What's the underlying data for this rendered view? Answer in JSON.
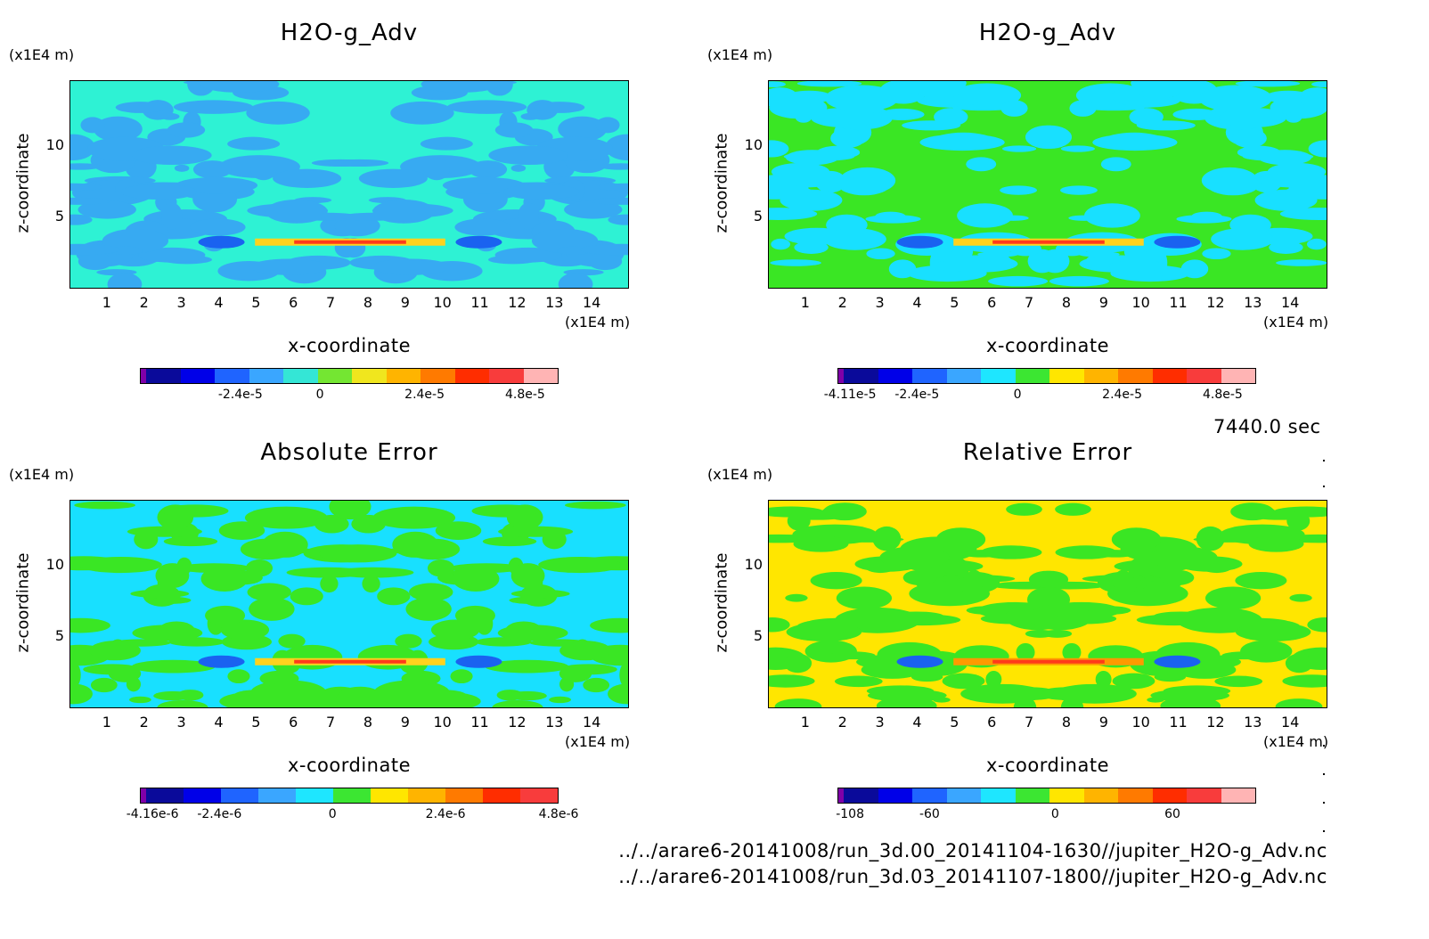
{
  "panels": [
    {
      "title": "H2O-g_Adv",
      "xlabel": "x-coordinate",
      "ylabel": "z-coordinate",
      "x_unit": "(x1E4 m)",
      "y_unit": "(x1E4 m)",
      "colorbar_ticks": [
        "-2.4e-5",
        "0",
        "2.4e-5",
        "4.8e-5"
      ],
      "colorbar_colors": [
        "#7f00a8",
        "#0a0a9a",
        "#0000e8",
        "#1f64ff",
        "#3aa6ff",
        "#34e6d6",
        "#74e632",
        "#f0e61e",
        "#ffb400",
        "#ff7a00",
        "#ff2d00",
        "#f83c3c",
        "#ffb4b4"
      ],
      "field_colors": {
        "base": "#2ef2d4",
        "mid": "#37aaf2",
        "low": "#1a62f0",
        "hot": "#ff3a1a",
        "warm": "#ffd21e"
      }
    },
    {
      "title": "H2O-g_Adv",
      "xlabel": "x-coordinate",
      "ylabel": "z-coordinate",
      "x_unit": "(x1E4 m)",
      "y_unit": "(x1E4 m)",
      "colorbar_ticks": [
        "-4.11e-5",
        "-2.4e-5",
        "0",
        "2.4e-5",
        "4.8e-5"
      ],
      "colorbar_colors": [
        "#7f00a8",
        "#0a0a9a",
        "#0000e8",
        "#1f64ff",
        "#3aa6ff",
        "#1ee6ff",
        "#3ce632",
        "#ffe600",
        "#ffb400",
        "#ff7a00",
        "#ff2d00",
        "#f83c3c",
        "#ffb4b4"
      ],
      "field_colors": {
        "base": "#3ae624",
        "mid": "#18e0ff",
        "low": "#1a62f0",
        "hot": "#ff3a1a",
        "warm": "#ffd21e"
      }
    },
    {
      "title": "Absolute Error",
      "xlabel": "x-coordinate",
      "ylabel": "z-coordinate",
      "x_unit": "(x1E4 m)",
      "y_unit": "(x1E4 m)",
      "colorbar_ticks": [
        "-4.16e-6",
        "-2.4e-6",
        "0",
        "2.4e-6",
        "4.8e-6"
      ],
      "colorbar_colors": [
        "#7f00a8",
        "#0a0a9a",
        "#0000e8",
        "#1f64ff",
        "#3aa6ff",
        "#1ee6ff",
        "#3ce632",
        "#ffe600",
        "#ffb400",
        "#ff7a00",
        "#ff2d00",
        "#f83c3c"
      ],
      "field_colors": {
        "base": "#18e0ff",
        "mid": "#3ae624",
        "low": "#1a62f0",
        "hot": "#ff3a1a",
        "warm": "#ffd21e"
      }
    },
    {
      "title": "Relative Error",
      "xlabel": "x-coordinate",
      "ylabel": "z-coordinate",
      "x_unit": "(x1E4 m)",
      "y_unit": "(x1E4 m)",
      "colorbar_ticks": [
        "-108",
        "-60",
        "0",
        "60"
      ],
      "colorbar_colors": [
        "#7f00a8",
        "#0a0a9a",
        "#0000e8",
        "#1f64ff",
        "#3aa6ff",
        "#1ee6ff",
        "#3ce632",
        "#ffe600",
        "#ffb400",
        "#ff7a00",
        "#ff2d00",
        "#f83c3c",
        "#ffb4b4"
      ],
      "field_colors": {
        "base": "#ffe600",
        "mid": "#3ae624",
        "low": "#1a62f0",
        "hot": "#ff3a1a",
        "warm": "#ff9a00"
      }
    }
  ],
  "time_label": "7440.0 sec",
  "footer_lines": [
    "../../arare6-20141008/run_3d.00_20141104-1630//jupiter_H2O-g_Adv.nc",
    "../../arare6-20141008/run_3d.03_20141107-1800//jupiter_H2O-g_Adv.nc"
  ],
  "chart_data": [
    {
      "type": "heatmap",
      "title": "H2O-g_Adv",
      "xlabel": "x-coordinate",
      "ylabel": "z-coordinate",
      "x_unit": "(x1E4 m)",
      "y_unit": "(x1E4 m)",
      "xlim": [
        0,
        15
      ],
      "ylim": [
        0,
        14.5
      ],
      "x_ticks": [
        "1",
        "2",
        "3",
        "4",
        "5",
        "6",
        "7",
        "8",
        "9",
        "10",
        "11",
        "12",
        "13",
        "14"
      ],
      "y_ticks": [
        "5",
        "10"
      ],
      "colorbar": {
        "ticks": [
          "-2.4e-5",
          "0",
          "2.4e-5",
          "4.8e-5"
        ],
        "range": [
          -3.6e-05,
          6e-05
        ]
      }
    },
    {
      "type": "heatmap",
      "title": "H2O-g_Adv",
      "xlabel": "x-coordinate",
      "ylabel": "z-coordinate",
      "x_unit": "(x1E4 m)",
      "y_unit": "(x1E4 m)",
      "xlim": [
        0,
        15
      ],
      "ylim": [
        0,
        14.5
      ],
      "x_ticks": [
        "1",
        "2",
        "3",
        "4",
        "5",
        "6",
        "7",
        "8",
        "9",
        "10",
        "11",
        "12",
        "13",
        "14"
      ],
      "y_ticks": [
        "5",
        "10"
      ],
      "colorbar": {
        "ticks": [
          "-4.11e-5",
          "-2.4e-5",
          "0",
          "2.4e-5",
          "4.8e-5"
        ],
        "range": [
          -4.11e-05,
          6e-05
        ]
      }
    },
    {
      "type": "heatmap",
      "title": "Absolute Error",
      "xlabel": "x-coordinate",
      "ylabel": "z-coordinate",
      "x_unit": "(x1E4 m)",
      "y_unit": "(x1E4 m)",
      "xlim": [
        0,
        15
      ],
      "ylim": [
        0,
        14.5
      ],
      "x_ticks": [
        "1",
        "2",
        "3",
        "4",
        "5",
        "6",
        "7",
        "8",
        "9",
        "10",
        "11",
        "12",
        "13",
        "14"
      ],
      "y_ticks": [
        "5",
        "10"
      ],
      "colorbar": {
        "ticks": [
          "-4.16e-6",
          "-2.4e-6",
          "0",
          "2.4e-6",
          "4.8e-6"
        ],
        "range": [
          -4.16e-06,
          6e-06
        ]
      }
    },
    {
      "type": "heatmap",
      "title": "Relative Error",
      "xlabel": "x-coordinate",
      "ylabel": "z-coordinate",
      "x_unit": "(x1E4 m)",
      "y_unit": "(x1E4 m)",
      "xlim": [
        0,
        15
      ],
      "ylim": [
        0,
        14.5
      ],
      "x_ticks": [
        "1",
        "2",
        "3",
        "4",
        "5",
        "6",
        "7",
        "8",
        "9",
        "10",
        "11",
        "12",
        "13",
        "14"
      ],
      "y_ticks": [
        "5",
        "10"
      ],
      "colorbar": {
        "ticks": [
          "-108",
          "-60",
          "0",
          "60"
        ],
        "range": [
          -108,
          108
        ]
      }
    }
  ]
}
